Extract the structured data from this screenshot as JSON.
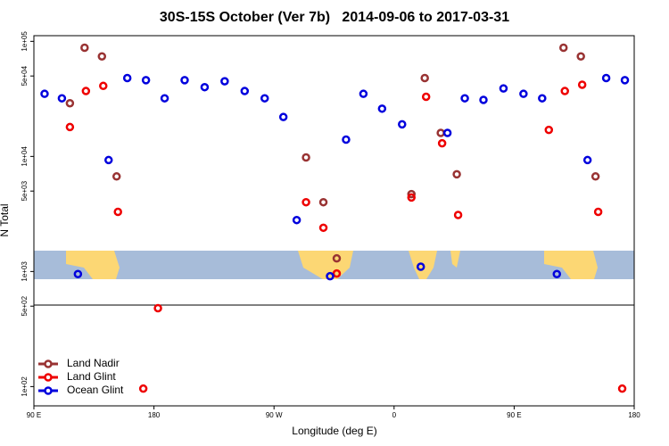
{
  "chart_data": {
    "type": "scatter",
    "title": "30S-15S October (Ver 7b)   2014-09-06 to 2017-03-31",
    "xlabel": "Longitude (deg E)",
    "ylabel": "N Total",
    "log_y": true,
    "legend": "bottom-left",
    "xlim": [
      90,
      540
    ],
    "ylim": [
      68,
      112000
    ],
    "xticks": [
      {
        "value": 90,
        "label": "90 E"
      },
      180,
      {
        "value": 270,
        "label": "90 W"
      },
      {
        "value": 360,
        "label": "0"
      },
      {
        "value": 450,
        "label": "90 E"
      },
      {
        "value": 540,
        "label": "180"
      }
    ],
    "yticks": [
      {
        "value": 100,
        "label": "1e+02"
      },
      {
        "value": 500,
        "label": "5e+02"
      },
      {
        "value": 1000,
        "label": "1e+03"
      },
      {
        "value": 5000,
        "label": "5e+03"
      },
      {
        "value": 10000,
        "label": "1e+04"
      },
      {
        "value": 50000,
        "label": "5e+04"
      },
      {
        "value": 100000,
        "label": "1e+05"
      }
    ],
    "series": [
      {
        "name": "Land Nadir",
        "color": "#993333",
        "x": [
          117,
          128,
          141,
          152,
          294,
          307,
          317,
          373,
          383,
          395,
          407,
          487,
          500,
          511
        ],
        "values": [
          29000,
          88000,
          74000,
          6700,
          9800,
          4000,
          1300,
          4700,
          48000,
          16000,
          7000,
          88000,
          74000,
          6700
        ]
      },
      {
        "name": "Land Glint",
        "color": "#ee0000",
        "x": [
          117,
          129,
          142,
          153,
          183,
          172,
          294,
          307,
          317,
          373,
          384,
          396,
          408,
          476,
          488,
          501,
          513,
          531
        ],
        "values": [
          18000,
          37000,
          41000,
          3300,
          480,
          96,
          4000,
          2400,
          960,
          4400,
          33000,
          13000,
          3100,
          17000,
          37000,
          42000,
          3300,
          96
        ]
      },
      {
        "name": "Ocean Glint",
        "color": "#0000dd",
        "x": [
          98,
          111,
          123,
          146,
          160,
          174,
          188,
          203,
          218,
          233,
          248,
          263,
          277,
          287,
          312,
          324,
          337,
          351,
          366,
          380,
          400,
          413,
          427,
          442,
          457,
          471,
          482,
          505,
          519,
          533
        ],
        "values": [
          35000,
          32000,
          950,
          9300,
          48000,
          46000,
          32000,
          46000,
          40000,
          45000,
          37000,
          32000,
          22000,
          2800,
          910,
          14000,
          35000,
          26000,
          19000,
          1100,
          16000,
          32000,
          31000,
          39000,
          35000,
          32000,
          950,
          9300,
          48000,
          46000
        ]
      }
    ]
  }
}
